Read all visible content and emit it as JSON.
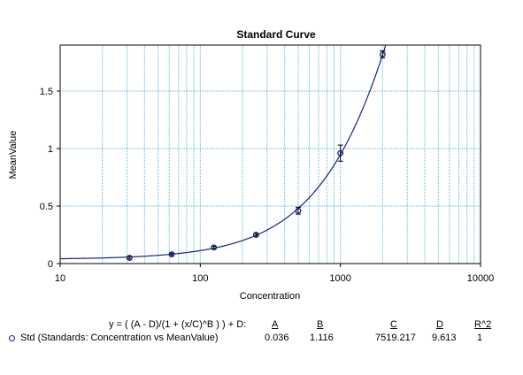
{
  "chart_data": {
    "type": "scatter",
    "title": "Standard Curve",
    "xlabel": "Concentration",
    "ylabel": "MeanValue",
    "xscale": "log",
    "xlim": [
      10,
      10000
    ],
    "ylim": [
      0,
      1.9
    ],
    "grid": true,
    "x_ticks": [
      10,
      100,
      1000,
      10000
    ],
    "x_tick_labels": [
      "10",
      "100",
      "1000",
      "10000"
    ],
    "y_ticks": [
      0,
      0.5,
      1,
      1.5
    ],
    "y_tick_labels": [
      "0",
      "0.5",
      "1",
      "1.5"
    ],
    "series": [
      {
        "x": [
          31.25,
          62.5,
          125,
          250,
          500,
          1000,
          2000
        ],
        "y": [
          0.05,
          0.08,
          0.14,
          0.25,
          0.46,
          0.96,
          1.82
        ],
        "error": [
          0.01,
          0.01,
          0.01,
          0.01,
          0.03,
          0.07,
          0.03
        ]
      }
    ],
    "fit": {
      "equation": "y = ( (A - D)/(1 + (x/C)^B ) ) + D:",
      "headers": [
        "A",
        "B",
        "C",
        "D",
        "R^2"
      ],
      "values": [
        "0.036",
        "1.116",
        "7519.217",
        "9.613",
        "1"
      ],
      "A": 0.036,
      "B": 1.116,
      "C": 7519.217,
      "D": 9.613
    },
    "legend": {
      "entry": "Std (Standards: Concentration vs MeanValue)"
    },
    "colors": {
      "curve": "#1a237e",
      "points": "#1a237e",
      "grid": "#5fb3d9"
    }
  }
}
